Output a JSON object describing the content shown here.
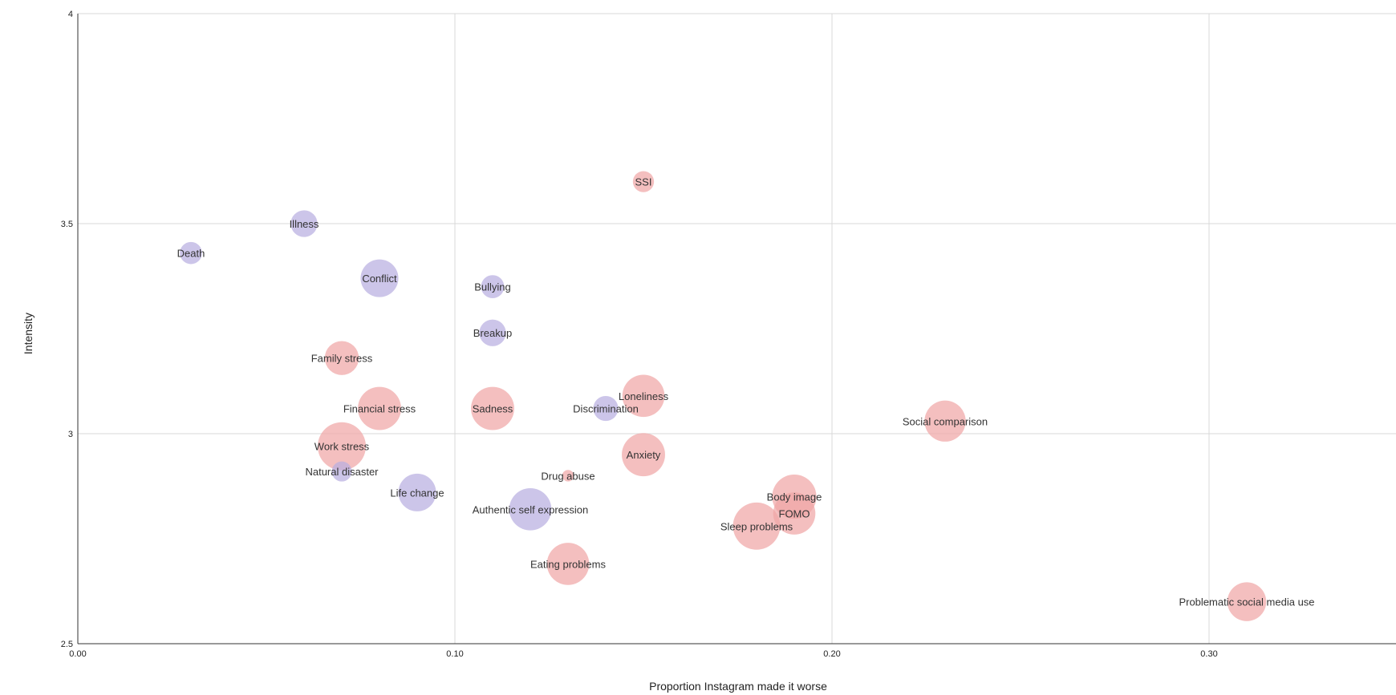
{
  "chart_data": {
    "type": "scatter",
    "title": "",
    "xlabel": "Proportion Instagram made it worse",
    "ylabel": "Intensity",
    "xlim": [
      0,
      0.35
    ],
    "ylim": [
      2.5,
      4
    ],
    "x_ticks": [
      {
        "value": 0.0,
        "label": "0.00"
      },
      {
        "value": 0.1,
        "label": "0.10"
      },
      {
        "value": 0.2,
        "label": "0.20"
      },
      {
        "value": 0.3,
        "label": "0.30"
      }
    ],
    "y_ticks": [
      {
        "value": 2.5,
        "label": "2.5"
      },
      {
        "value": 3.0,
        "label": "3"
      },
      {
        "value": 3.5,
        "label": "3.5"
      },
      {
        "value": 4.0,
        "label": "4"
      }
    ],
    "grid": true,
    "colors": {
      "group_a": "#b9aee0",
      "group_b": "#f0a6a6"
    },
    "points": [
      {
        "label": "SSI",
        "x": 0.15,
        "y": 3.6,
        "size": 1.0,
        "group": "group_b"
      },
      {
        "label": "Illness",
        "x": 0.06,
        "y": 3.5,
        "size": 1.6,
        "group": "group_a"
      },
      {
        "label": "Death",
        "x": 0.03,
        "y": 3.43,
        "size": 1.1,
        "group": "group_a"
      },
      {
        "label": "Conflict",
        "x": 0.08,
        "y": 3.37,
        "size": 3.2,
        "group": "group_a"
      },
      {
        "label": "Bullying",
        "x": 0.11,
        "y": 3.35,
        "size": 1.2,
        "group": "group_a"
      },
      {
        "label": "Breakup",
        "x": 0.11,
        "y": 3.24,
        "size": 1.6,
        "group": "group_a"
      },
      {
        "label": "Family stress",
        "x": 0.07,
        "y": 3.18,
        "size": 2.6,
        "group": "group_b"
      },
      {
        "label": "Loneliness",
        "x": 0.15,
        "y": 3.09,
        "size": 4.0,
        "group": "group_b"
      },
      {
        "label": "Financial stress",
        "x": 0.08,
        "y": 3.06,
        "size": 4.2,
        "group": "group_b"
      },
      {
        "label": "Sadness",
        "x": 0.11,
        "y": 3.06,
        "size": 4.2,
        "group": "group_b"
      },
      {
        "label": "Discrimination",
        "x": 0.14,
        "y": 3.06,
        "size": 1.4,
        "group": "group_a"
      },
      {
        "label": "Social comparison",
        "x": 0.23,
        "y": 3.03,
        "size": 3.8,
        "group": "group_b"
      },
      {
        "label": "Work stress",
        "x": 0.07,
        "y": 2.97,
        "size": 5.2,
        "group": "group_b"
      },
      {
        "label": "Anxiety",
        "x": 0.15,
        "y": 2.95,
        "size": 4.2,
        "group": "group_b"
      },
      {
        "label": "Natural disaster",
        "x": 0.07,
        "y": 2.91,
        "size": 0.9,
        "group": "group_a"
      },
      {
        "label": "Drug abuse",
        "x": 0.13,
        "y": 2.9,
        "size": 0.3,
        "group": "group_b"
      },
      {
        "label": "Life change",
        "x": 0.09,
        "y": 2.86,
        "size": 3.2,
        "group": "group_a"
      },
      {
        "label": "Body image",
        "x": 0.19,
        "y": 2.85,
        "size": 4.4,
        "group": "group_b"
      },
      {
        "label": "Authentic self expression",
        "x": 0.12,
        "y": 2.82,
        "size": 4.0,
        "group": "group_a"
      },
      {
        "label": "FOMO",
        "x": 0.19,
        "y": 2.81,
        "size": 4.0,
        "group": "group_b"
      },
      {
        "label": "Sleep problems",
        "x": 0.18,
        "y": 2.78,
        "size": 5.0,
        "group": "group_b"
      },
      {
        "label": "Eating problems",
        "x": 0.13,
        "y": 2.69,
        "size": 4.0,
        "group": "group_b"
      },
      {
        "label": "Problematic social media use",
        "x": 0.31,
        "y": 2.6,
        "size": 3.4,
        "group": "group_b"
      }
    ]
  }
}
